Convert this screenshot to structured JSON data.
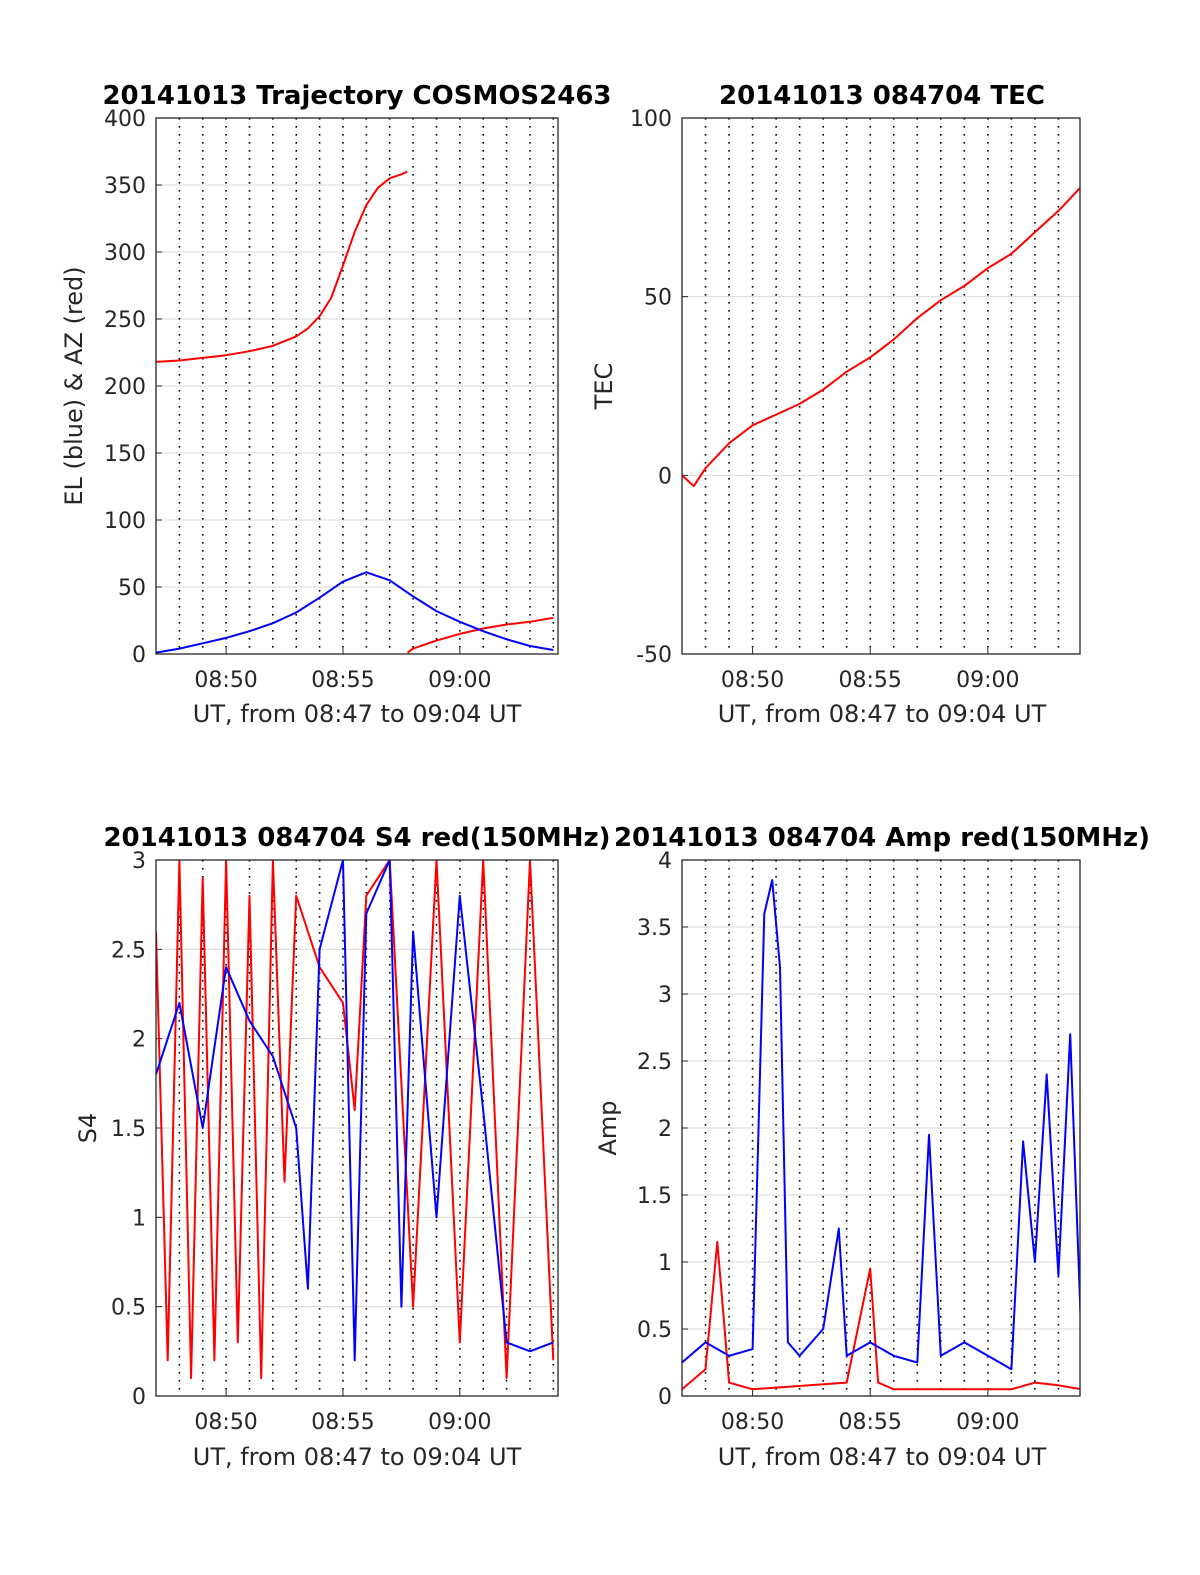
{
  "colors": {
    "red": "#ff0000",
    "blue": "#0000ff",
    "grid": "#000000",
    "axis": "#262626"
  },
  "chart_data": [
    {
      "type": "line",
      "title": "20141013 Trajectory COSMOS2463",
      "xlabel": "UT, from 08:47 to 09:04 UT",
      "ylabel": "EL (blue) & AZ (red)",
      "xlim": [
        "08:47",
        "09:04"
      ],
      "ylim": [
        0,
        400
      ],
      "xticks": [
        "08:50",
        "08:55",
        "09:00"
      ],
      "yticks": [
        "0",
        "50",
        "100",
        "150",
        "200",
        "250",
        "300",
        "350",
        "400"
      ],
      "grid": true,
      "series": [
        {
          "color": "red",
          "x": [
            "08:47",
            "08:48",
            "08:49",
            "08:50",
            "08:51",
            "08:52",
            "08:53",
            "08:53:30",
            "08:54",
            "08:54:30",
            "08:55",
            "08:55:30",
            "08:56",
            "08:56:30",
            "08:57",
            "08:57:30",
            "08:57:45"
          ],
          "y": [
            218,
            219,
            221,
            223,
            226,
            230,
            237,
            243,
            252,
            266,
            290,
            315,
            335,
            348,
            355,
            358,
            360
          ]
        },
        {
          "color": "red",
          "x": [
            "08:57:46",
            "08:58",
            "08:59",
            "09:00",
            "09:01",
            "09:02",
            "09:03",
            "09:04"
          ],
          "y": [
            1,
            4,
            10,
            15,
            19,
            22,
            24,
            27
          ]
        },
        {
          "color": "blue",
          "x": [
            "08:47",
            "08:48",
            "08:49",
            "08:50",
            "08:51",
            "08:52",
            "08:53",
            "08:54",
            "08:55",
            "08:56",
            "08:57",
            "08:58",
            "08:59",
            "09:00",
            "09:01",
            "09:02",
            "09:03",
            "09:04"
          ],
          "y": [
            1,
            4,
            8,
            12,
            17,
            23,
            31,
            42,
            54,
            61,
            55,
            43,
            32,
            24,
            17,
            11,
            6,
            3
          ]
        }
      ]
    },
    {
      "type": "line",
      "title": "20141013 084704 TEC",
      "xlabel": "UT, from 08:47 to 09:04 UT",
      "ylabel": "TEC",
      "xlim": [
        "08:47",
        "09:04"
      ],
      "ylim": [
        -50,
        100
      ],
      "xticks": [
        "08:50",
        "08:55",
        "09:00"
      ],
      "yticks": [
        "-50",
        "0",
        "50",
        "100"
      ],
      "grid": true,
      "series": [
        {
          "color": "red",
          "x": [
            "08:47",
            "08:47:30",
            "08:48",
            "08:49",
            "08:50",
            "08:51",
            "08:52",
            "08:53",
            "08:54",
            "08:55",
            "08:56",
            "08:57",
            "08:58",
            "08:59",
            "09:00",
            "09:01",
            "09:02",
            "09:03",
            "09:04"
          ],
          "y": [
            0,
            -3,
            2,
            9,
            14,
            17,
            20,
            24,
            29,
            33,
            38,
            44,
            49,
            53,
            58,
            62,
            68,
            74,
            81
          ]
        }
      ]
    },
    {
      "type": "line",
      "title": "20141013 084704 S4 red(150MHz)",
      "xlabel": "UT, from 08:47 to 09:04 UT",
      "ylabel": "S4",
      "xlim": [
        "08:47",
        "09:04"
      ],
      "ylim": [
        0,
        3
      ],
      "xticks": [
        "08:50",
        "08:55",
        "09:00"
      ],
      "yticks": [
        "0",
        "0.5",
        "1",
        "1.5",
        "2",
        "2.5",
        "3"
      ],
      "grid": true,
      "series": [
        {
          "color": "red",
          "x": [
            "08:47",
            "08:47:30",
            "08:48",
            "08:48:30",
            "08:49",
            "08:49:30",
            "08:50",
            "08:50:30",
            "08:51",
            "08:51:30",
            "08:52",
            "08:52:30",
            "08:53",
            "08:54",
            "08:55",
            "08:55:30",
            "08:56",
            "08:57",
            "08:58",
            "08:59",
            "09:00",
            "09:01",
            "09:02",
            "09:03",
            "09:04"
          ],
          "y": [
            2.6,
            0.2,
            3.0,
            0.1,
            2.9,
            0.2,
            3.0,
            0.3,
            2.8,
            0.1,
            3.0,
            1.2,
            2.8,
            2.4,
            2.2,
            1.6,
            2.8,
            3.0,
            0.5,
            3.0,
            0.3,
            3.0,
            0.1,
            3.0,
            0.2
          ]
        },
        {
          "color": "blue",
          "x": [
            "08:47",
            "08:48",
            "08:49",
            "08:50",
            "08:51",
            "08:52",
            "08:53",
            "08:53:30",
            "08:54",
            "08:55",
            "08:55:30",
            "08:56",
            "08:57",
            "08:57:30",
            "08:58",
            "08:59",
            "09:00",
            "09:01",
            "09:02",
            "09:03",
            "09:04"
          ],
          "y": [
            1.8,
            2.2,
            1.5,
            2.4,
            2.1,
            1.9,
            1.5,
            0.6,
            2.5,
            3.0,
            0.2,
            2.7,
            3.0,
            0.5,
            2.6,
            1.0,
            2.8,
            1.6,
            0.3,
            0.25,
            0.3
          ]
        }
      ]
    },
    {
      "type": "line",
      "title": "20141013 084704 Amp red(150MHz)",
      "xlabel": "UT, from 08:47 to 09:04 UT",
      "ylabel": "Amp",
      "xlim": [
        "08:47",
        "09:04"
      ],
      "ylim": [
        0,
        4
      ],
      "xticks": [
        "08:50",
        "08:55",
        "09:00"
      ],
      "yticks": [
        "0",
        "0.5",
        "1",
        "1.5",
        "2",
        "2.5",
        "3",
        "3.5",
        "4"
      ],
      "grid": true,
      "series": [
        {
          "color": "red",
          "x": [
            "08:47",
            "08:48",
            "08:48:30",
            "08:49",
            "08:50",
            "08:54",
            "08:55",
            "08:55:20",
            "08:56",
            "09:00",
            "09:01",
            "09:02",
            "09:03",
            "09:04"
          ],
          "y": [
            0.05,
            0.2,
            1.15,
            0.1,
            0.05,
            0.1,
            0.95,
            0.1,
            0.05,
            0.05,
            0.05,
            0.1,
            0.08,
            0.05
          ]
        },
        {
          "color": "blue",
          "x": [
            "08:47",
            "08:48",
            "08:49",
            "08:50",
            "08:50:30",
            "08:50:50",
            "08:51:10",
            "08:51:30",
            "08:52",
            "08:53",
            "08:53:40",
            "08:54",
            "08:55",
            "08:56",
            "08:57",
            "08:57:30",
            "08:58",
            "08:59",
            "09:00",
            "09:01",
            "09:01:30",
            "09:02",
            "09:02:30",
            "09:03",
            "09:03:30",
            "09:04"
          ],
          "y": [
            0.25,
            0.4,
            0.3,
            0.35,
            3.6,
            3.85,
            3.2,
            0.4,
            0.3,
            0.5,
            1.25,
            0.3,
            0.4,
            0.3,
            0.25,
            1.95,
            0.3,
            0.4,
            0.3,
            0.2,
            1.9,
            1.0,
            2.4,
            0.9,
            2.7,
            0.3
          ]
        }
      ]
    }
  ]
}
